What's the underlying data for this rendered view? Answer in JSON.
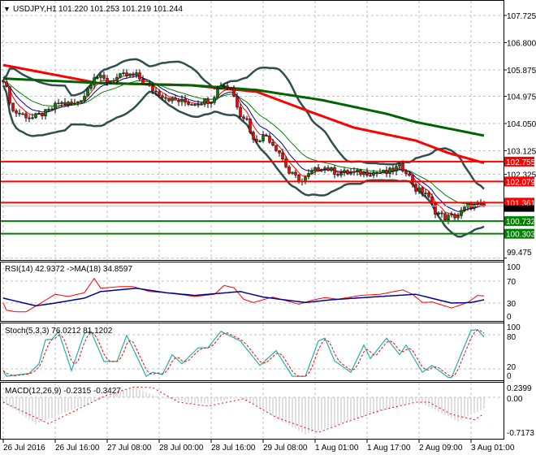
{
  "header": {
    "menu_icon": "triangle-down-icon",
    "symbol": "USDJPY,H1",
    "ohlc": "101.220 101.253 101.219 101.244"
  },
  "colors": {
    "bull_candle": "#008000",
    "bear_candle": "#ff0000",
    "bands": "#2f4f4f",
    "ma_long_red": "#ff0000",
    "ma_long_green": "#006400",
    "resistance": "#ff0000",
    "support": "#008000",
    "rsi": "#ff0000",
    "rsi_ma": "#00008b",
    "stoch_main": "#20b2aa",
    "stoch_signal": "#ff0000",
    "macd_hist": "#c0c0c0",
    "macd_signal": "#ff0000"
  },
  "chart_data": [
    {
      "type": "candlestick",
      "title": "USDJPY,H1",
      "ylim": [
        99.475,
        107.725
      ],
      "y_ticks": [
        "107.725",
        "106.800",
        "105.875",
        "104.975",
        "104.050",
        "103.125",
        "102.325",
        "99.475"
      ],
      "x_ticks": [
        "26 Jul 2016",
        "26 Jul 16:00",
        "27 Jul 08:00",
        "28 Jul 00:00",
        "28 Jul 16:00",
        "29 Jul 08:00",
        "1 Aug 01:00",
        "1 Aug 17:00",
        "2 Aug 09:00",
        "3 Aug 01:00"
      ],
      "grid": true,
      "close_keypoints": [
        [
          0,
          105.58
        ],
        [
          3,
          104.47
        ],
        [
          9,
          104.24
        ],
        [
          14,
          104.47
        ],
        [
          17,
          104.74
        ],
        [
          22,
          104.71
        ],
        [
          25,
          105.02
        ],
        [
          28,
          105.68
        ],
        [
          32,
          105.49
        ],
        [
          37,
          105.68
        ],
        [
          41,
          105.68
        ],
        [
          44,
          105.35
        ],
        [
          47,
          105.13
        ],
        [
          52,
          104.85
        ],
        [
          58,
          104.74
        ],
        [
          64,
          104.85
        ],
        [
          67,
          105.4
        ],
        [
          70,
          105.27
        ],
        [
          73,
          104.38
        ],
        [
          75,
          104.19
        ],
        [
          77,
          103.47
        ],
        [
          81,
          103.64
        ],
        [
          85,
          103.08
        ],
        [
          88,
          102.37
        ],
        [
          92,
          102.09
        ],
        [
          95,
          102.39
        ],
        [
          98,
          102.59
        ],
        [
          103,
          102.37
        ],
        [
          108,
          102.37
        ],
        [
          113,
          102.39
        ],
        [
          118,
          102.37
        ],
        [
          122,
          102.59
        ],
        [
          124,
          102.45
        ],
        [
          127,
          101.81
        ],
        [
          130,
          101.7
        ],
        [
          133,
          101.07
        ],
        [
          136,
          100.85
        ],
        [
          140,
          100.93
        ],
        [
          143,
          101.26
        ],
        [
          148,
          101.244
        ]
      ],
      "ma_long_red": [
        [
          0,
          106.04
        ],
        [
          29,
          105.43
        ],
        [
          58,
          105.35
        ],
        [
          78,
          105.13
        ],
        [
          94,
          104.47
        ],
        [
          108,
          103.91
        ],
        [
          127,
          103.47
        ],
        [
          137,
          103.05
        ],
        [
          148,
          102.71
        ]
      ],
      "ma_long_green": [
        [
          0,
          105.58
        ],
        [
          29,
          105.43
        ],
        [
          58,
          105.35
        ],
        [
          78,
          105.19
        ],
        [
          98,
          104.85
        ],
        [
          118,
          104.38
        ],
        [
          127,
          104.1
        ],
        [
          148,
          103.64
        ]
      ],
      "levels": [
        {
          "value": "102.755",
          "kind": "resistance"
        },
        {
          "value": "102.079",
          "kind": "resistance"
        },
        {
          "value": "101.361",
          "kind": "resistance"
        },
        {
          "value": "100.732",
          "kind": "support"
        },
        {
          "value": "100.303",
          "kind": "support"
        }
      ],
      "current_price": "101.244"
    },
    {
      "type": "line",
      "title": "RSI(14) 42.9372  ->MA(18) 34.8597",
      "ylim": [
        0,
        100
      ],
      "y_ticks": [
        "100",
        "70",
        "30",
        "0"
      ],
      "series": [
        {
          "name": "RSI(14)",
          "points": [
            [
              0,
              30
            ],
            [
              1,
              17
            ],
            [
              4,
              14
            ],
            [
              7,
              14
            ],
            [
              11,
              28
            ],
            [
              16,
              46
            ],
            [
              20,
              42
            ],
            [
              25,
              49
            ],
            [
              28,
              75
            ],
            [
              30,
              57
            ],
            [
              36,
              60
            ],
            [
              40,
              60
            ],
            [
              45,
              51
            ],
            [
              50,
              49
            ],
            [
              59,
              42
            ],
            [
              65,
              46
            ],
            [
              68,
              62
            ],
            [
              71,
              58
            ],
            [
              74,
              37
            ],
            [
              77,
              31
            ],
            [
              83,
              41
            ],
            [
              91,
              28
            ],
            [
              95,
              35
            ],
            [
              99,
              40
            ],
            [
              103,
              37
            ],
            [
              110,
              44
            ],
            [
              116,
              46
            ],
            [
              123,
              54
            ],
            [
              126,
              46
            ],
            [
              129,
              31
            ],
            [
              132,
              32
            ],
            [
              138,
              21
            ],
            [
              143,
              31
            ],
            [
              146,
              44
            ],
            [
              148,
              43
            ]
          ]
        },
        {
          "name": "MA(18)",
          "points": [
            [
              0,
              39
            ],
            [
              10,
              25
            ],
            [
              16,
              30
            ],
            [
              25,
              39
            ],
            [
              30,
              51
            ],
            [
              41,
              57
            ],
            [
              50,
              49
            ],
            [
              59,
              44
            ],
            [
              73,
              51
            ],
            [
              80,
              41
            ],
            [
              93,
              31
            ],
            [
              101,
              36
            ],
            [
              116,
              42
            ],
            [
              127,
              46
            ],
            [
              138,
              30
            ],
            [
              144,
              31
            ],
            [
              148,
              36
            ]
          ]
        }
      ]
    },
    {
      "type": "line",
      "title": "Stoch(5,3,3) 76.0212 81.1202",
      "ylim": [
        0,
        100
      ],
      "y_ticks": [
        "100",
        "80",
        "20",
        "0"
      ],
      "main_points": [
        [
          0,
          17
        ],
        [
          1,
          7
        ],
        [
          8,
          12
        ],
        [
          11,
          29
        ],
        [
          13,
          71
        ],
        [
          15,
          72
        ],
        [
          17,
          86
        ],
        [
          21,
          17
        ],
        [
          25,
          83
        ],
        [
          27,
          86
        ],
        [
          31,
          33
        ],
        [
          35,
          33
        ],
        [
          38,
          79
        ],
        [
          44,
          7
        ],
        [
          46,
          14
        ],
        [
          49,
          10
        ],
        [
          52,
          45
        ],
        [
          55,
          29
        ],
        [
          60,
          57
        ],
        [
          63,
          57
        ],
        [
          67,
          86
        ],
        [
          73,
          69
        ],
        [
          79,
          26
        ],
        [
          84,
          52
        ],
        [
          89,
          7
        ],
        [
          93,
          7
        ],
        [
          97,
          69
        ],
        [
          99,
          74
        ],
        [
          102,
          34
        ],
        [
          107,
          14
        ],
        [
          111,
          62
        ],
        [
          113,
          38
        ],
        [
          118,
          74
        ],
        [
          122,
          45
        ],
        [
          124,
          62
        ],
        [
          129,
          14
        ],
        [
          132,
          26
        ],
        [
          137,
          5
        ],
        [
          138,
          5
        ],
        [
          144,
          88
        ],
        [
          146,
          89
        ],
        [
          148,
          76
        ]
      ]
    },
    {
      "type": "bar",
      "title": "MACD(12,26,9) -0.2315 -0.3427",
      "ylim": [
        -0.7173,
        0.2399
      ],
      "y_ticks": [
        "0.2399",
        "0.00",
        "-0.7173"
      ],
      "histogram_points": [
        [
          0,
          -0.1
        ],
        [
          10,
          -0.55
        ],
        [
          31,
          0.0
        ],
        [
          40,
          0.21
        ],
        [
          48,
          0.0
        ],
        [
          58,
          -0.12
        ],
        [
          63,
          -0.12
        ],
        [
          73,
          0.0
        ],
        [
          93,
          -0.76
        ],
        [
          127,
          -0.07
        ],
        [
          140,
          -0.49
        ],
        [
          148,
          -0.23
        ]
      ],
      "signal_points": [
        [
          0,
          -0.1
        ],
        [
          14,
          -0.54
        ],
        [
          31,
          0.02
        ],
        [
          40,
          0.21
        ],
        [
          46,
          0.2
        ],
        [
          54,
          -0.1
        ],
        [
          63,
          -0.18
        ],
        [
          74,
          -0.03
        ],
        [
          84,
          -0.41
        ],
        [
          97,
          -0.72
        ],
        [
          105,
          -0.52
        ],
        [
          116,
          -0.27
        ],
        [
          127,
          -0.1
        ],
        [
          131,
          -0.1
        ],
        [
          138,
          -0.35
        ],
        [
          145,
          -0.46
        ],
        [
          148,
          -0.34
        ]
      ]
    }
  ]
}
